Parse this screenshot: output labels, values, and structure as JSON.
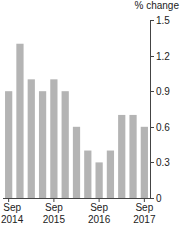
{
  "chart_data": {
    "type": "bar",
    "y_label": "% change",
    "categories": [
      "Sep 2014",
      null,
      null,
      null,
      "Sep 2015",
      null,
      null,
      null,
      "Sep 2016",
      null,
      null,
      null,
      "Sep 2017"
    ],
    "values": [
      0.9,
      1.3,
      1.0,
      0.9,
      1.0,
      0.9,
      0.6,
      0.4,
      0.3,
      0.4,
      0.7,
      0.7,
      0.6
    ],
    "color": "#b4b4b4",
    "ylim": [
      0,
      1.5
    ],
    "yticks": [
      0,
      0.3,
      0.6,
      0.9,
      1.2,
      1.5
    ],
    "grid": false
  }
}
